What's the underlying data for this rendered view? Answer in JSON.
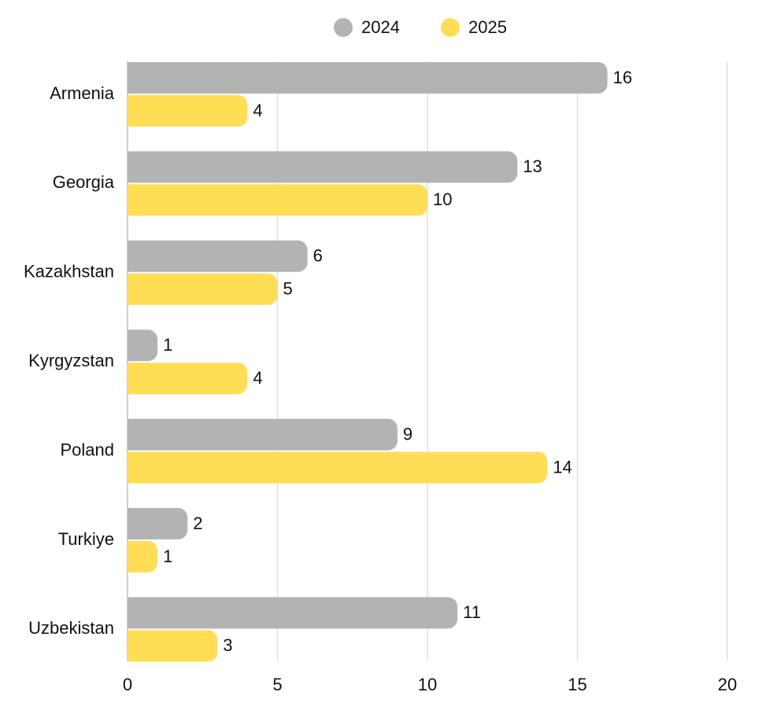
{
  "chart_data": {
    "type": "bar",
    "orientation": "horizontal",
    "title": "",
    "xlabel": "",
    "ylabel": "",
    "xlim": [
      0,
      20
    ],
    "x_ticks": [
      0,
      5,
      10,
      15,
      20
    ],
    "x_tick_labels": [
      "0",
      "5",
      "10",
      "15",
      "20"
    ],
    "grid": true,
    "legend_position": "top-center",
    "categories": [
      "Armenia",
      "Georgia",
      "Kazakhstan",
      "Kyrgyzstan",
      "Poland",
      "Turkiye",
      "Uzbekistan"
    ],
    "series": [
      {
        "name": "2024",
        "color": "#b3b3b3",
        "values": [
          16,
          13,
          6,
          1,
          9,
          2,
          11
        ]
      },
      {
        "name": "2025",
        "color": "#ffdd55",
        "values": [
          4,
          10,
          5,
          4,
          14,
          1,
          3
        ]
      }
    ]
  }
}
